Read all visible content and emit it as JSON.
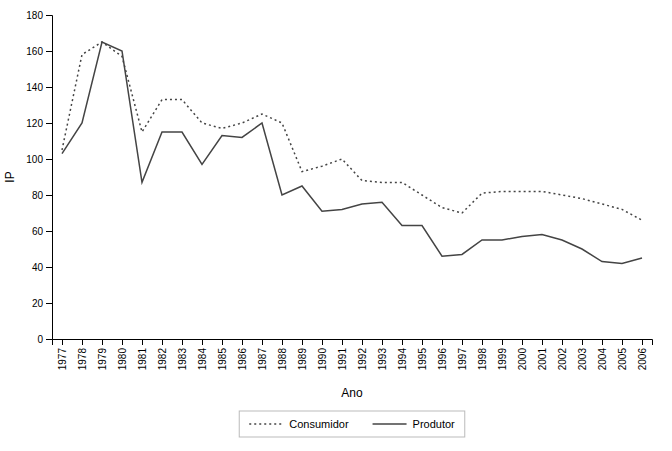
{
  "chart_data": {
    "type": "line",
    "x": [
      1977,
      1978,
      1979,
      1980,
      1981,
      1982,
      1983,
      1984,
      1985,
      1986,
      1987,
      1988,
      1989,
      1990,
      1991,
      1992,
      1993,
      1994,
      1995,
      1996,
      1997,
      1998,
      1999,
      2000,
      2001,
      2002,
      2003,
      2004,
      2005,
      2006
    ],
    "series": [
      {
        "name": "Consumidor",
        "color": "#444444",
        "line_style": "dotted",
        "values": [
          105,
          158,
          165,
          157,
          115,
          133,
          133,
          120,
          117,
          120,
          125,
          120,
          93,
          96,
          100,
          88,
          87,
          87,
          80,
          73,
          70,
          81,
          82,
          82,
          82,
          80,
          78,
          75,
          72,
          66
        ]
      },
      {
        "name": "Produtor",
        "color": "#444444",
        "line_style": "solid",
        "values": [
          103,
          120,
          165,
          160,
          87,
          115,
          115,
          97,
          113,
          112,
          120,
          80,
          85,
          71,
          72,
          75,
          76,
          63,
          63,
          46,
          47,
          55,
          55,
          57,
          58,
          55,
          50,
          43,
          42,
          45
        ]
      }
    ],
    "x_label": "Ano",
    "y_label": "IP",
    "xlim": [
      1976.5,
      2006.5
    ],
    "xticks": [
      1977,
      1978,
      1979,
      1980,
      1981,
      1982,
      1983,
      1984,
      1985,
      1986,
      1987,
      1988,
      1989,
      1990,
      1991,
      1992,
      1993,
      1994,
      1995,
      1996,
      1997,
      1998,
      1999,
      2000,
      2001,
      2002,
      2003,
      2004,
      2005,
      2006
    ],
    "ylim": [
      0,
      180
    ],
    "yticks": [
      0,
      20,
      40,
      60,
      80,
      100,
      120,
      140,
      160,
      180
    ],
    "grid": false,
    "legend": "bottom"
  }
}
